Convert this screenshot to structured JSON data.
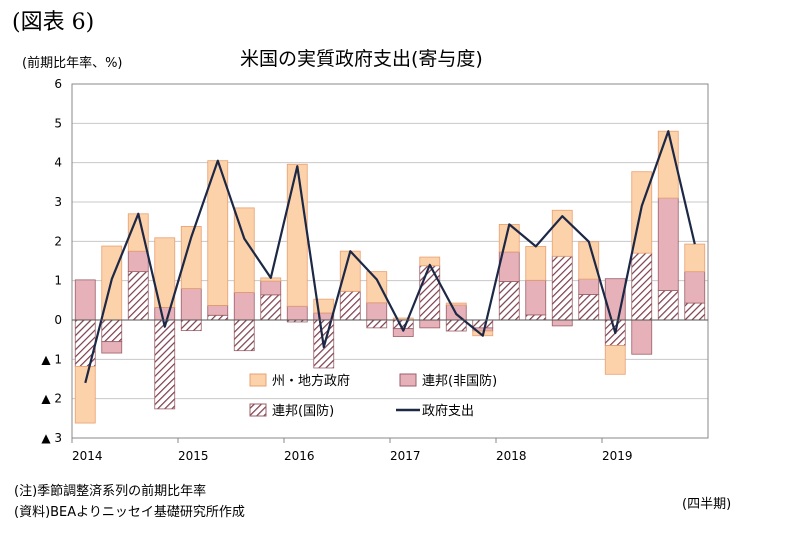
{
  "header": {
    "figure_label": "(図表 6)",
    "unit_label": "(前期比年率、%)",
    "title": "米国の実質政府支出(寄与度)"
  },
  "footer": {
    "note": "(注)季節調整済系列の前期比年率",
    "source": "(資料)BEAよりニッセイ基礎研究所作成",
    "x_unit": "(四半期)"
  },
  "colors": {
    "state_local_fill": "#fcd2ab",
    "state_local_stroke": "#e8a070",
    "nondefense_fill": "#e6b1b8",
    "nondefense_stroke": "#9b5f67",
    "defense_stripe": "#7a3d4b",
    "line": "#1c2845",
    "grid": "#c8c8c8"
  },
  "chart_data": {
    "type": "bar",
    "stacked": true,
    "title": "米国の実質政府支出(寄与度)",
    "ylabel": "(前期比年率、%)",
    "xlabel": "(四半期)",
    "ylim": [
      -3,
      6
    ],
    "yticks": [
      -3,
      -2,
      -1,
      0,
      1,
      2,
      3,
      4,
      5,
      6
    ],
    "ytick_labels": [
      "▲ 3",
      "▲ 2",
      "▲ 1",
      "0",
      "1",
      "2",
      "3",
      "4",
      "5",
      "6"
    ],
    "years": [
      "2014",
      "2015",
      "2016",
      "2017",
      "2018",
      "2019"
    ],
    "quarters_per_year": 4,
    "grid": true,
    "legend_position": "bottom-center",
    "series": [
      {
        "name": "州・地方政府",
        "kind": "bar",
        "pattern": "solid-orange",
        "values": [
          -1.44,
          1.88,
          0.95,
          1.77,
          1.58,
          3.68,
          2.15,
          0.08,
          3.61,
          0.35,
          1.02,
          0.79,
          0.05,
          0.22,
          0.05,
          -0.12,
          0.7,
          0.86,
          1.17,
          0.95,
          -0.73,
          2.07,
          1.7,
          0.7
        ]
      },
      {
        "name": "連邦(非国防)",
        "kind": "bar",
        "pattern": "solid-pink",
        "values": [
          1.02,
          -0.29,
          0.52,
          0.32,
          0.8,
          0.25,
          0.7,
          0.35,
          0.35,
          0.18,
          0.0,
          0.44,
          -0.2,
          -0.2,
          0.38,
          -0.08,
          0.75,
          0.88,
          -0.15,
          0.39,
          1.05,
          -0.87,
          2.35,
          0.8
        ]
      },
      {
        "name": "連邦(国防)",
        "kind": "bar",
        "pattern": "hatch",
        "values": [
          -1.18,
          -0.55,
          1.23,
          -2.26,
          -0.27,
          0.12,
          -0.78,
          0.64,
          -0.05,
          -1.22,
          0.73,
          -0.2,
          -0.22,
          1.38,
          -0.28,
          -0.2,
          0.98,
          0.13,
          1.62,
          0.65,
          -0.65,
          1.7,
          0.75,
          0.43
        ]
      },
      {
        "name": "政府支出",
        "kind": "line",
        "values": [
          -1.6,
          1.04,
          2.7,
          -0.17,
          2.11,
          4.05,
          2.07,
          1.07,
          3.91,
          -0.69,
          1.75,
          1.03,
          -0.27,
          1.4,
          0.15,
          -0.4,
          2.43,
          1.87,
          2.64,
          1.99,
          -0.33,
          2.9,
          4.8,
          1.93
        ]
      }
    ]
  }
}
